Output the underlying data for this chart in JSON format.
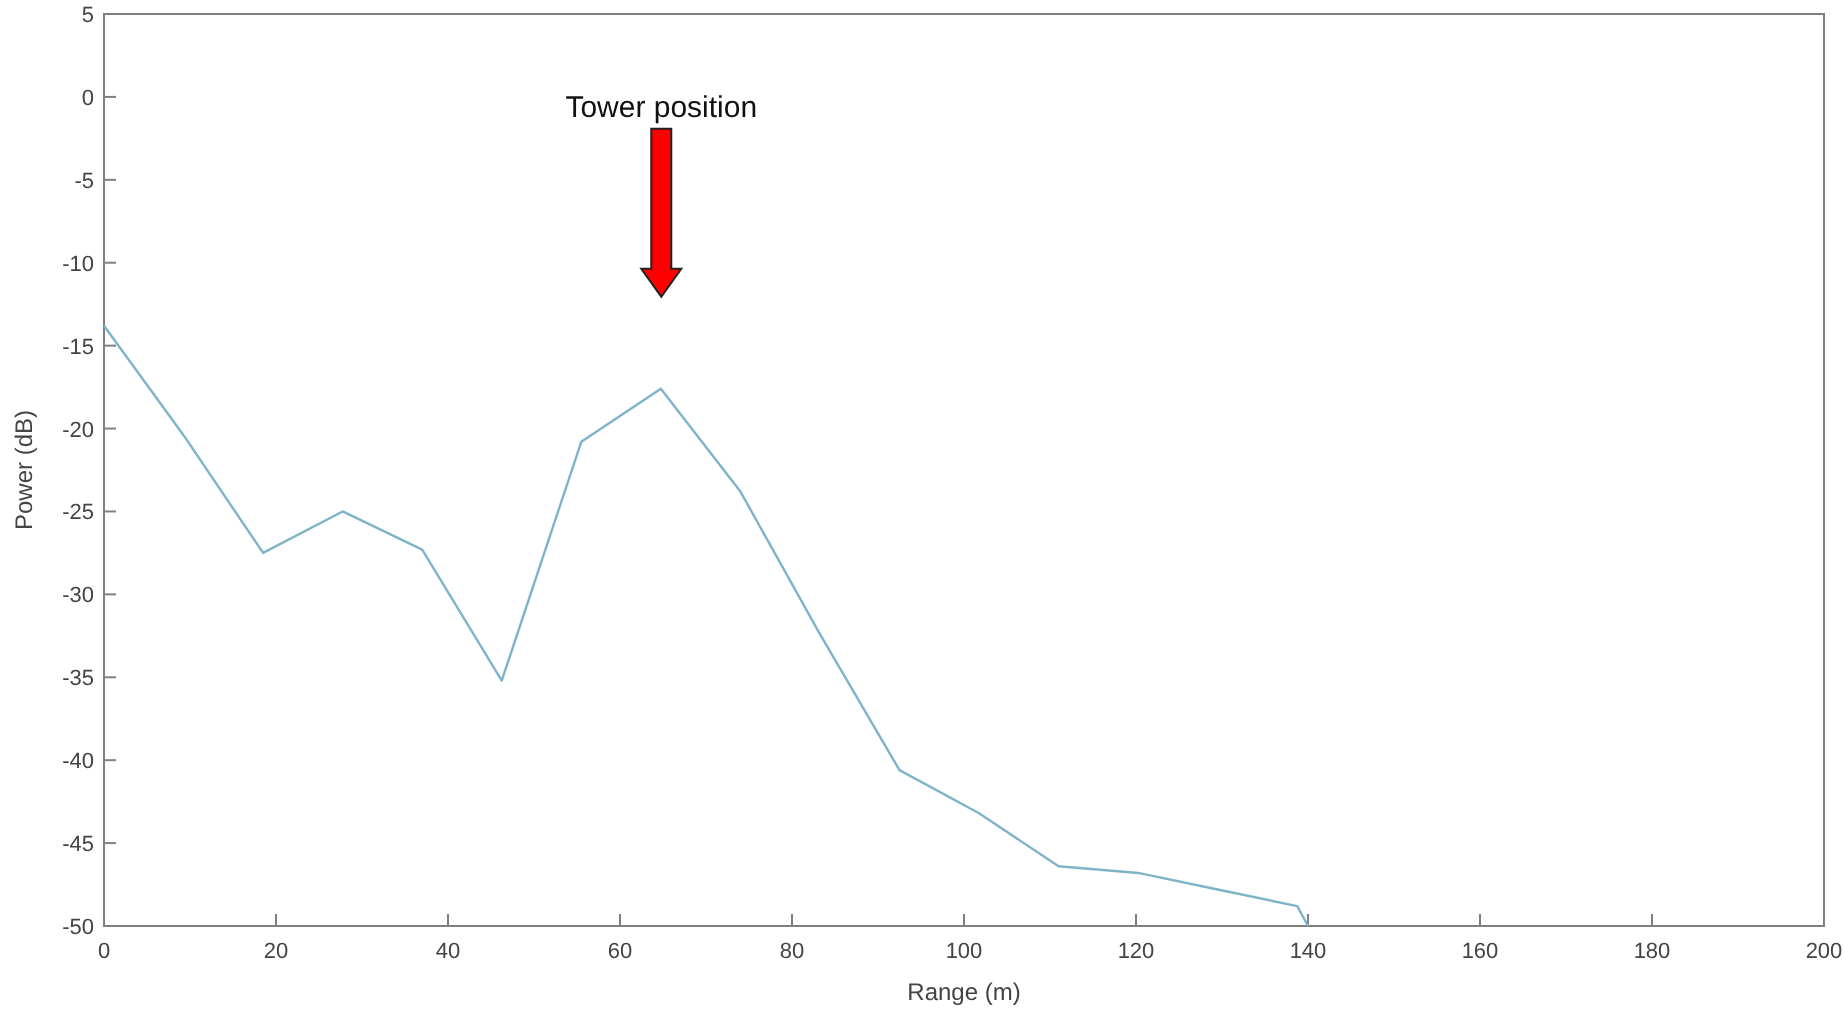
{
  "chart_data": {
    "type": "line",
    "xlabel": "Range (m)",
    "ylabel": "Power (dB)",
    "x": [
      0,
      9.25,
      18.5,
      27.75,
      37,
      46.25,
      55.5,
      64.75,
      74,
      83.25,
      92.5,
      101.75,
      111,
      120.25,
      129.5,
      138.75,
      140
    ],
    "series": [
      {
        "color": "#7fb4c8",
        "values": [
          -13.8,
          -20.4,
          -27.5,
          -25,
          -27.3,
          -35.2,
          -20.8,
          -17.6,
          -23.8,
          -32.4,
          -40.6,
          -43.2,
          -46.4,
          -46.8,
          -47.8,
          -48.8,
          -50
        ]
      }
    ],
    "xlim": [
      0,
      200
    ],
    "xticks": [
      0,
      20,
      40,
      60,
      80,
      100,
      120,
      140,
      160,
      180,
      200
    ],
    "ylim": [
      -50,
      5
    ],
    "yticks": [
      5,
      0,
      -5,
      -10,
      -15,
      -20,
      -25,
      -30,
      -35,
      -40,
      -45,
      -50
    ],
    "annotations": [
      "Tower position"
    ],
    "grid": false
  }
}
